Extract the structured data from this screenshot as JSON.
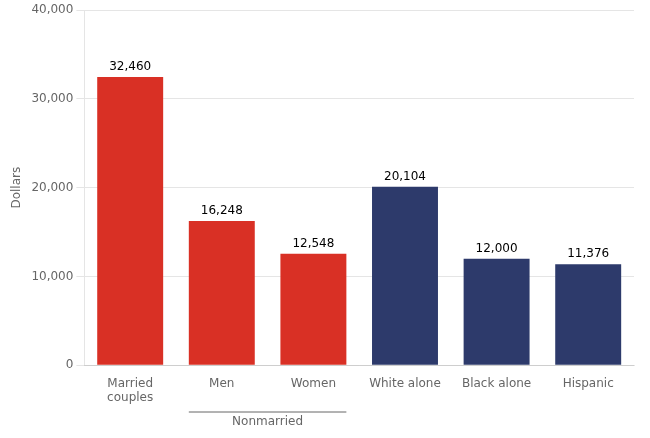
{
  "chart_data": {
    "type": "bar",
    "ylabel": "Dollars",
    "categories": [
      "Married\ncouples",
      "Men",
      "Women",
      "White alone",
      "Black alone",
      "Hispanic"
    ],
    "values": [
      32460,
      16248,
      12548,
      20104,
      12000,
      11376
    ],
    "value_labels": [
      "32,460",
      "16,248",
      "12,548",
      "20,104",
      "12,000",
      "11,376"
    ],
    "data_labels": true,
    "colors": [
      "#d93025",
      "#d93025",
      "#d93025",
      "#2d3a6b",
      "#2d3a6b",
      "#2d3a6b"
    ],
    "ylim": [
      0,
      40000
    ],
    "yticks": [
      0,
      {
        "value": 10000,
        "label": "10,000"
      },
      {
        "value": 20000,
        "label": "20,000"
      },
      {
        "value": 30000,
        "label": "30,000"
      },
      {
        "value": 40000,
        "label": "40,000"
      }
    ],
    "grid": true,
    "annotations": [
      {
        "text": "Nonmarried",
        "categories": [
          "Men",
          "Women"
        ]
      }
    ]
  }
}
